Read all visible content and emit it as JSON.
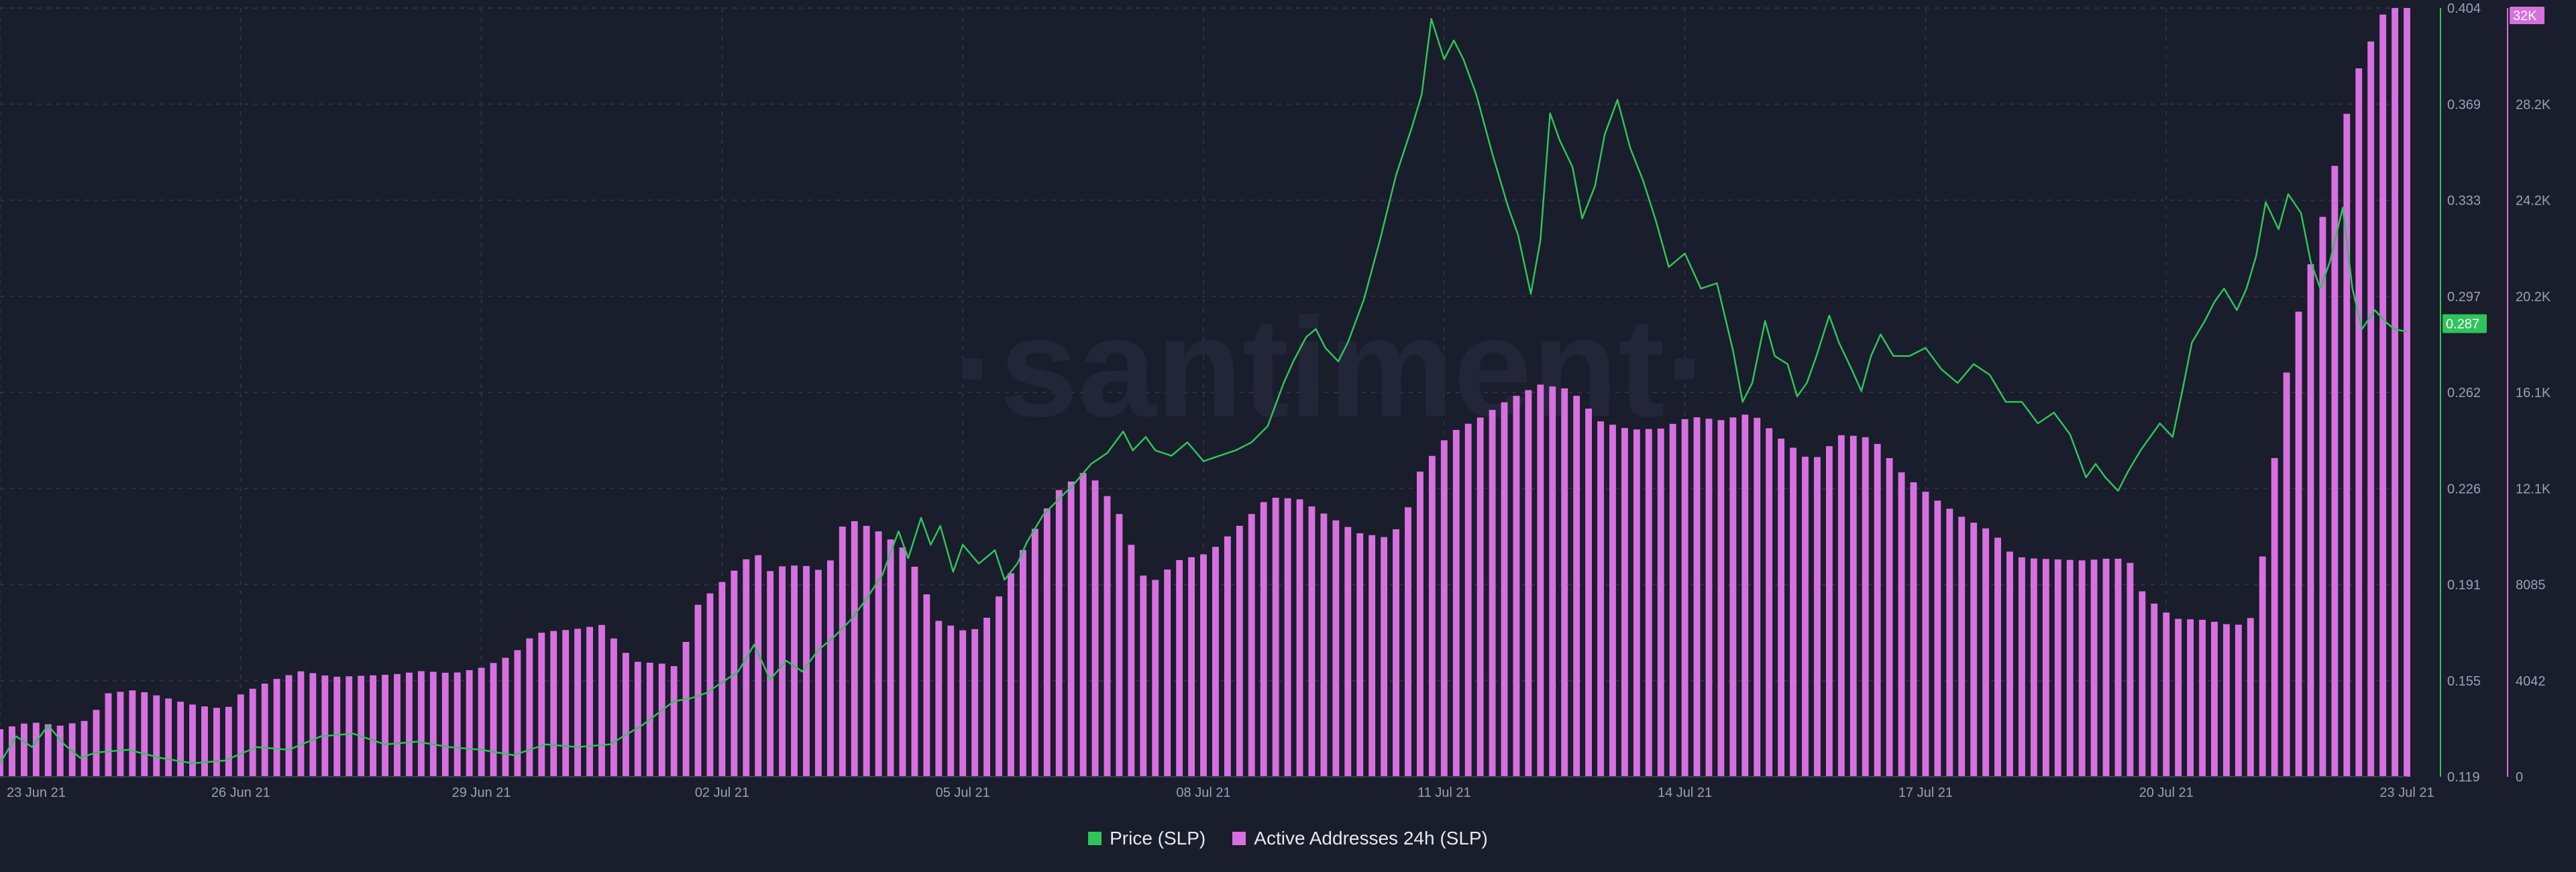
{
  "watermark": "·santiment·",
  "legend": {
    "price": "Price (SLP)",
    "active": "Active Addresses 24h (SLP)"
  },
  "colors": {
    "background": "#1a1d2b",
    "price": "#2fc45b",
    "active": "#d86fe0",
    "grid": "#2e3244",
    "axis_text": "#9aa0b3"
  },
  "chart_data": {
    "type": "bar",
    "x_axis": {
      "tick_labels": [
        "23 Jun 21",
        "26 Jun 21",
        "29 Jun 21",
        "02 Jul 21",
        "05 Jul 21",
        "08 Jul 21",
        "11 Jul 21",
        "14 Jul 21",
        "17 Jul 21",
        "20 Jul 21",
        "23 Jul 21"
      ],
      "range": [
        "2021-06-23",
        "2021-07-23"
      ]
    },
    "price_axis": {
      "ticks": [
        "0.119",
        "0.155",
        "0.191",
        "0.226",
        "0.262",
        "0.297",
        "0.333",
        "0.369",
        "0.404"
      ],
      "ylim": [
        0.119,
        0.404
      ],
      "current_label": "0.287",
      "current_value": 0.287
    },
    "active_axis": {
      "ticks": [
        "0",
        "4042",
        "8085",
        "12.1K",
        "16.1K",
        "20.2K",
        "24.2K",
        "28.2K",
        "32K"
      ],
      "ylim": [
        0,
        32338
      ],
      "current_label": "32K"
    },
    "grid": true,
    "series": [
      {
        "name": "Price (SLP)",
        "kind": "line",
        "axis": "price",
        "points": [
          [
            0,
            0.124
          ],
          [
            0.5,
            0.134
          ],
          [
            1,
            0.13
          ],
          [
            1.5,
            0.138
          ],
          [
            2,
            0.131
          ],
          [
            2.5,
            0.126
          ],
          [
            3,
            0.128
          ],
          [
            4,
            0.129
          ],
          [
            5,
            0.126
          ],
          [
            6,
            0.124
          ],
          [
            7,
            0.125
          ],
          [
            8,
            0.13
          ],
          [
            9,
            0.129
          ],
          [
            10,
            0.134
          ],
          [
            11,
            0.135
          ],
          [
            12,
            0.131
          ],
          [
            13,
            0.132
          ],
          [
            14,
            0.13
          ],
          [
            15,
            0.129
          ],
          [
            16,
            0.127
          ],
          [
            17,
            0.131
          ],
          [
            18,
            0.13
          ],
          [
            19,
            0.131
          ],
          [
            20,
            0.138
          ],
          [
            21,
            0.147
          ],
          [
            21.5,
            0.148
          ],
          [
            22,
            0.15
          ],
          [
            22.5,
            0.154
          ],
          [
            23,
            0.158
          ],
          [
            23.5,
            0.168
          ],
          [
            24,
            0.155
          ],
          [
            24.5,
            0.162
          ],
          [
            25,
            0.158
          ],
          [
            25.5,
            0.166
          ],
          [
            26,
            0.171
          ],
          [
            26.5,
            0.177
          ],
          [
            27,
            0.185
          ],
          [
            27.5,
            0.194
          ],
          [
            28,
            0.21
          ],
          [
            28.3,
            0.2
          ],
          [
            28.7,
            0.215
          ],
          [
            29,
            0.205
          ],
          [
            29.3,
            0.212
          ],
          [
            29.7,
            0.195
          ],
          [
            30,
            0.205
          ],
          [
            30.5,
            0.198
          ],
          [
            31,
            0.203
          ],
          [
            31.3,
            0.192
          ],
          [
            31.7,
            0.198
          ],
          [
            32,
            0.206
          ],
          [
            32.5,
            0.216
          ],
          [
            33,
            0.222
          ],
          [
            33.5,
            0.228
          ],
          [
            34,
            0.235
          ],
          [
            34.5,
            0.239
          ],
          [
            35,
            0.247
          ],
          [
            35.3,
            0.24
          ],
          [
            35.7,
            0.245
          ],
          [
            36,
            0.24
          ],
          [
            36.5,
            0.238
          ],
          [
            37,
            0.243
          ],
          [
            37.5,
            0.236
          ],
          [
            38,
            0.238
          ],
          [
            38.5,
            0.24
          ],
          [
            39,
            0.243
          ],
          [
            39.5,
            0.249
          ],
          [
            40,
            0.265
          ],
          [
            40.3,
            0.273
          ],
          [
            40.7,
            0.282
          ],
          [
            41,
            0.285
          ],
          [
            41.3,
            0.278
          ],
          [
            41.7,
            0.273
          ],
          [
            42,
            0.28
          ],
          [
            42.5,
            0.296
          ],
          [
            43,
            0.318
          ],
          [
            43.5,
            0.342
          ],
          [
            44,
            0.36
          ],
          [
            44.3,
            0.372
          ],
          [
            44.6,
            0.4
          ],
          [
            45,
            0.385
          ],
          [
            45.3,
            0.392
          ],
          [
            45.6,
            0.385
          ],
          [
            46,
            0.372
          ],
          [
            46.5,
            0.35
          ],
          [
            47,
            0.33
          ],
          [
            47.3,
            0.32
          ],
          [
            47.7,
            0.298
          ],
          [
            48,
            0.318
          ],
          [
            48.3,
            0.365
          ],
          [
            48.6,
            0.355
          ],
          [
            49,
            0.345
          ],
          [
            49.3,
            0.326
          ],
          [
            49.7,
            0.338
          ],
          [
            50,
            0.357
          ],
          [
            50.4,
            0.37
          ],
          [
            50.8,
            0.352
          ],
          [
            51.2,
            0.34
          ],
          [
            51.6,
            0.325
          ],
          [
            52,
            0.308
          ],
          [
            52.5,
            0.313
          ],
          [
            53,
            0.3
          ],
          [
            53.5,
            0.302
          ],
          [
            54,
            0.277
          ],
          [
            54.3,
            0.258
          ],
          [
            54.6,
            0.265
          ],
          [
            55,
            0.288
          ],
          [
            55.3,
            0.275
          ],
          [
            55.7,
            0.272
          ],
          [
            56,
            0.26
          ],
          [
            56.3,
            0.265
          ],
          [
            56.6,
            0.275
          ],
          [
            57,
            0.29
          ],
          [
            57.3,
            0.28
          ],
          [
            57.7,
            0.27
          ],
          [
            58,
            0.262
          ],
          [
            58.3,
            0.275
          ],
          [
            58.6,
            0.283
          ],
          [
            59,
            0.275
          ],
          [
            59.5,
            0.275
          ],
          [
            60,
            0.278
          ],
          [
            60.5,
            0.27
          ],
          [
            61,
            0.265
          ],
          [
            61.5,
            0.272
          ],
          [
            62,
            0.268
          ],
          [
            62.5,
            0.258
          ],
          [
            63,
            0.258
          ],
          [
            63.5,
            0.25
          ],
          [
            64,
            0.254
          ],
          [
            64.5,
            0.246
          ],
          [
            65,
            0.23
          ],
          [
            65.3,
            0.235
          ],
          [
            65.6,
            0.23
          ],
          [
            66,
            0.225
          ],
          [
            66.3,
            0.232
          ],
          [
            66.7,
            0.24
          ],
          [
            67,
            0.245
          ],
          [
            67.3,
            0.25
          ],
          [
            67.7,
            0.245
          ],
          [
            68,
            0.262
          ],
          [
            68.3,
            0.28
          ],
          [
            68.7,
            0.288
          ],
          [
            69,
            0.295
          ],
          [
            69.3,
            0.3
          ],
          [
            69.7,
            0.292
          ],
          [
            70,
            0.3
          ],
          [
            70.3,
            0.312
          ],
          [
            70.6,
            0.332
          ],
          [
            71,
            0.322
          ],
          [
            71.3,
            0.335
          ],
          [
            71.7,
            0.328
          ],
          [
            72,
            0.31
          ],
          [
            72.3,
            0.3
          ],
          [
            72.6,
            0.31
          ],
          [
            73,
            0.33
          ],
          [
            73.3,
            0.3
          ],
          [
            73.6,
            0.285
          ],
          [
            74,
            0.292
          ],
          [
            74.3,
            0.288
          ],
          [
            74.6,
            0.285
          ],
          [
            75,
            0.284
          ]
        ]
      },
      {
        "name": "Active Addresses 24h (SLP)",
        "kind": "bar",
        "axis": "active",
        "bar_step": 0.15,
        "points": [
          [
            0,
            2000
          ],
          [
            1,
            2300
          ],
          [
            2,
            2150
          ],
          [
            3,
            2400
          ],
          [
            3.5,
            3500
          ],
          [
            4.5,
            3650
          ],
          [
            6,
            3150
          ],
          [
            6.5,
            3000
          ],
          [
            7.5,
            2850
          ],
          [
            8,
            3500
          ],
          [
            9,
            4050
          ],
          [
            10,
            4450
          ],
          [
            11,
            4200
          ],
          [
            12,
            4250
          ],
          [
            13,
            4300
          ],
          [
            14,
            4450
          ],
          [
            15,
            4350
          ],
          [
            16,
            4600
          ],
          [
            17,
            5150
          ],
          [
            17.5,
            5800
          ],
          [
            18,
            6100
          ],
          [
            19,
            6200
          ],
          [
            20,
            6400
          ],
          [
            20.5,
            5500
          ],
          [
            21,
            4850
          ],
          [
            22,
            4750
          ],
          [
            22.5,
            4600
          ],
          [
            23,
            7100
          ],
          [
            24,
            8300
          ],
          [
            25,
            9500
          ],
          [
            25.5,
            8650
          ],
          [
            26,
            8900
          ],
          [
            27,
            8850
          ],
          [
            27.3,
            8400
          ],
          [
            28,
            10900
          ],
          [
            29,
            10400
          ],
          [
            30,
            9550
          ],
          [
            30.5,
            8300
          ],
          [
            31,
            6600
          ],
          [
            32,
            6100
          ],
          [
            32.5,
            6300
          ],
          [
            33,
            7400
          ],
          [
            34,
            9850
          ],
          [
            35,
            12000
          ],
          [
            36,
            12900
          ],
          [
            37,
            11250
          ],
          [
            38,
            8000
          ],
          [
            39,
            9100
          ],
          [
            40,
            9400
          ],
          [
            41,
            10500
          ],
          [
            42,
            11750
          ],
          [
            43,
            11700
          ],
          [
            44,
            10950
          ],
          [
            45,
            10250
          ],
          [
            46,
            10050
          ],
          [
            46.5,
            10850
          ],
          [
            47,
            12800
          ],
          [
            48,
            14450
          ],
          [
            49,
            15100
          ],
          [
            50,
            15900
          ],
          [
            51,
            16500
          ],
          [
            52,
            16300
          ],
          [
            53,
            14950
          ],
          [
            54,
            14600
          ],
          [
            55,
            14650
          ],
          [
            56,
            15150
          ],
          [
            57,
            15000
          ],
          [
            58,
            15300
          ],
          [
            59,
            14200
          ],
          [
            60,
            13250
          ],
          [
            61,
            14400
          ],
          [
            62,
            14250
          ],
          [
            63,
            12750
          ],
          [
            64,
            11750
          ],
          [
            65,
            10900
          ],
          [
            66,
            10300
          ],
          [
            66.5,
            9500
          ],
          [
            67,
            9200
          ],
          [
            68,
            9150
          ],
          [
            69,
            9100
          ],
          [
            70,
            9200
          ],
          [
            70.5,
            9100
          ],
          [
            71,
            7600
          ],
          [
            72,
            6650
          ],
          [
            73,
            6600
          ],
          [
            74,
            6350
          ],
          [
            74.5,
            6550
          ],
          [
            75,
            9800
          ],
          [
            75.5,
            15500
          ],
          [
            76,
            19000
          ],
          [
            77,
            24000
          ],
          [
            78,
            29500
          ],
          [
            79,
            32338
          ]
        ]
      }
    ]
  }
}
